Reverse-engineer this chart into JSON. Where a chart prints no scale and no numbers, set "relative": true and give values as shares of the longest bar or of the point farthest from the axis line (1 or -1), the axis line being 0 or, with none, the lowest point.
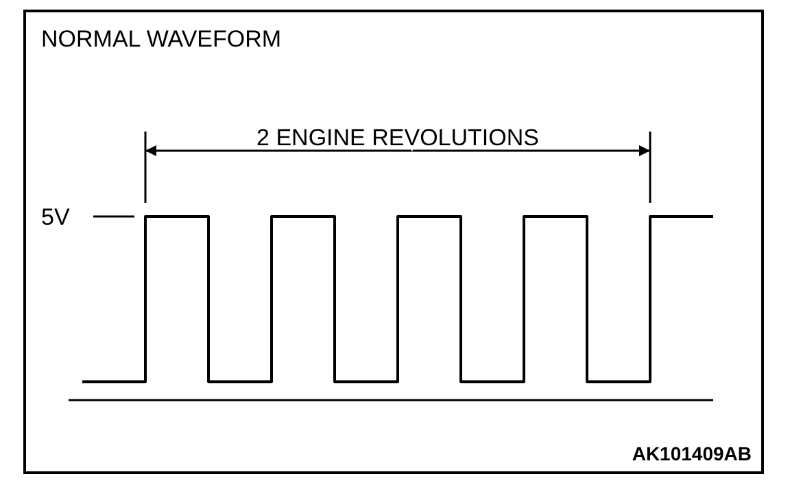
{
  "chart_data": {
    "type": "step",
    "title": "NORMAL WAVEFORM",
    "relative": true,
    "categories": [
      null,
      null,
      null,
      null,
      null,
      null,
      null,
      null,
      null,
      null,
      null
    ],
    "series": [
      {
        "color": "#000000",
        "values": [
          0.1,
          1,
          0.1,
          1,
          0.1,
          1,
          0.1,
          1,
          0.1,
          1,
          1
        ]
      }
    ],
    "ref_lines": [
      {
        "axis": "y",
        "value": 1,
        "label": "5V"
      }
    ],
    "annotations": [
      "2 ENGINE REVOLUTIONS",
      "AK101409AB"
    ],
    "line_style": "solid"
  }
}
